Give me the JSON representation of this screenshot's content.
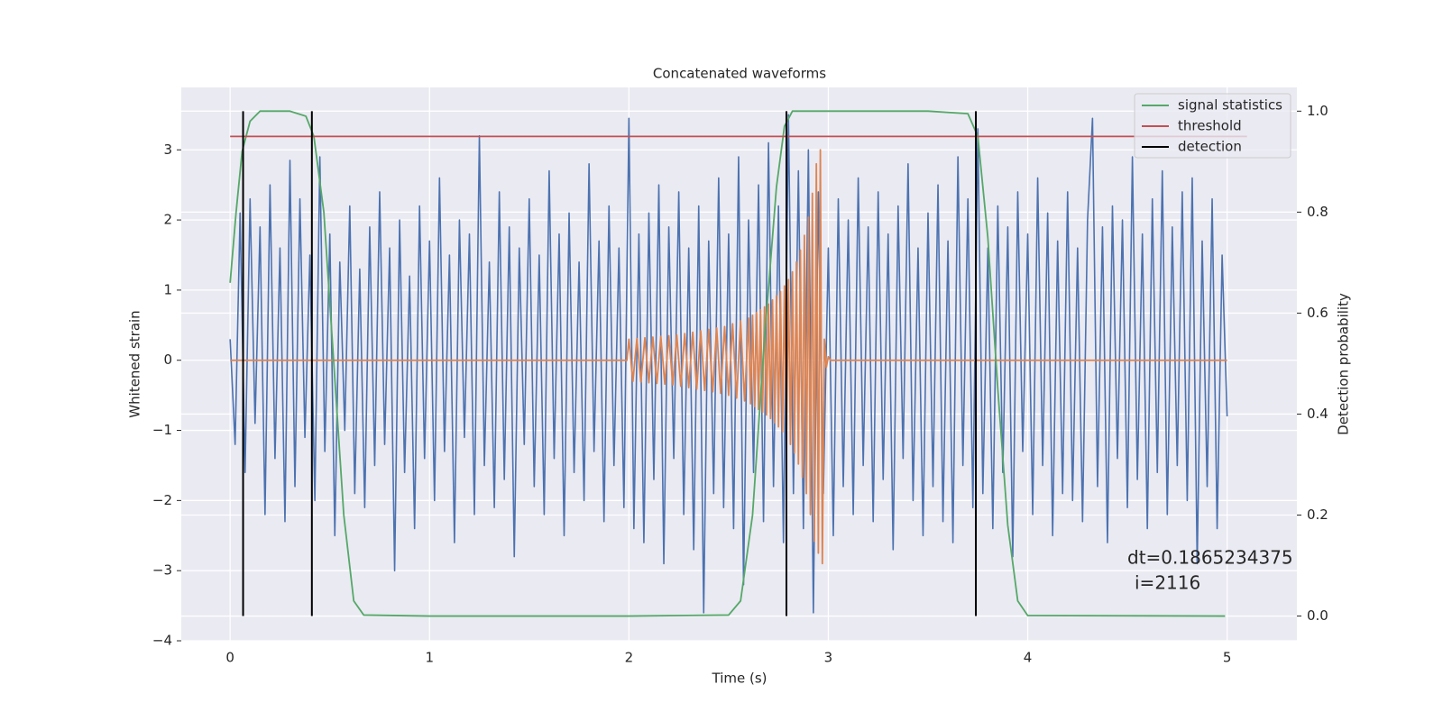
{
  "chart_data": {
    "type": "line",
    "title": "Concatenated waveforms",
    "xlabel": "Time (s)",
    "ylabel": "Whitened strain",
    "y2label": "Detection probability",
    "xlim": [
      -0.245,
      5.35
    ],
    "ylim": [
      -4,
      3.89
    ],
    "y2lim": [
      -0.049,
      1.047
    ],
    "xticks": [
      0,
      1,
      2,
      3,
      4,
      5
    ],
    "yticks": [
      {
        "value": -4,
        "label": "−4"
      },
      {
        "value": -3,
        "label": "−3"
      },
      {
        "value": -2,
        "label": "−2"
      },
      {
        "value": -1,
        "label": "−1"
      },
      0,
      1,
      2,
      3
    ],
    "y2ticks": [
      {
        "value": 0,
        "label": "0.0"
      },
      0.2,
      0.4,
      0.6,
      0.8,
      {
        "value": 1,
        "label": "1.0"
      }
    ],
    "grid": true,
    "legend": "upper right",
    "series": [
      {
        "color": "#4c72b0",
        "x": [
          0,
          0.025,
          0.05,
          0.075,
          0.1,
          0.125,
          0.15,
          0.175,
          0.2,
          0.225,
          0.25,
          0.275,
          0.3,
          0.325,
          0.35,
          0.375,
          0.4,
          0.425,
          0.45,
          0.475,
          0.5,
          0.525,
          0.55,
          0.575,
          0.6,
          0.625,
          0.65,
          0.675,
          0.7,
          0.725,
          0.75,
          0.775,
          0.8,
          0.825,
          0.85,
          0.875,
          0.9,
          0.925,
          0.95,
          0.975,
          1,
          1.025,
          1.05,
          1.075,
          1.1,
          1.125,
          1.15,
          1.175,
          1.2,
          1.225,
          1.25,
          1.275,
          1.3,
          1.325,
          1.35,
          1.375,
          1.4,
          1.425,
          1.45,
          1.475,
          1.5,
          1.525,
          1.55,
          1.575,
          1.6,
          1.625,
          1.65,
          1.675,
          1.7,
          1.725,
          1.75,
          1.775,
          1.8,
          1.825,
          1.85,
          1.875,
          1.9,
          1.925,
          1.95,
          1.975,
          2,
          2.025,
          2.05,
          2.075,
          2.1,
          2.125,
          2.15,
          2.175,
          2.2,
          2.225,
          2.25,
          2.275,
          2.3,
          2.325,
          2.35,
          2.375,
          2.4,
          2.425,
          2.45,
          2.475,
          2.5,
          2.525,
          2.55,
          2.575,
          2.6,
          2.625,
          2.65,
          2.675,
          2.7,
          2.725,
          2.75,
          2.775,
          2.8,
          2.825,
          2.85,
          2.875,
          2.9,
          2.925,
          2.95,
          2.975,
          3,
          3.025,
          3.05,
          3.075,
          3.1,
          3.125,
          3.15,
          3.175,
          3.2,
          3.225,
          3.25,
          3.275,
          3.3,
          3.325,
          3.35,
          3.375,
          3.4,
          3.425,
          3.45,
          3.475,
          3.5,
          3.525,
          3.55,
          3.575,
          3.6,
          3.625,
          3.65,
          3.675,
          3.7,
          3.725,
          3.75,
          3.775,
          3.8,
          3.825,
          3.85,
          3.875,
          3.9,
          3.925,
          3.95,
          3.975,
          4,
          4.025,
          4.05,
          4.075,
          4.1,
          4.125,
          4.15,
          4.175,
          4.2,
          4.225,
          4.25,
          4.275,
          4.3,
          4.325,
          4.35,
          4.375,
          4.4,
          4.425,
          4.45,
          4.475,
          4.5,
          4.525,
          4.55,
          4.575,
          4.6,
          4.625,
          4.65,
          4.675,
          4.7,
          4.725,
          4.75,
          4.775,
          4.8,
          4.825,
          4.85,
          4.875,
          4.9,
          4.925,
          4.95,
          4.975,
          5
        ],
        "values": [
          0.3,
          -1.2,
          2.1,
          -1.6,
          2.3,
          -0.9,
          1.9,
          -2.2,
          2.5,
          -1.4,
          1.6,
          -2.3,
          2.85,
          -1.8,
          2.3,
          -1.1,
          1.5,
          -2.0,
          2.9,
          -1.3,
          1.8,
          -2.5,
          1.4,
          -1.0,
          2.2,
          -1.9,
          1.3,
          -2.1,
          1.9,
          -1.5,
          2.4,
          -1.2,
          1.6,
          -3.0,
          2.0,
          -1.6,
          1.2,
          -2.4,
          2.2,
          -1.4,
          1.7,
          -2.0,
          2.6,
          -1.3,
          1.5,
          -2.6,
          2.0,
          -1.1,
          1.8,
          -2.2,
          3.2,
          -1.5,
          1.4,
          -2.1,
          2.4,
          -1.7,
          1.9,
          -2.8,
          1.6,
          -1.2,
          2.3,
          -1.8,
          1.5,
          -2.2,
          2.7,
          -1.4,
          1.8,
          -2.5,
          2.1,
          -1.6,
          1.4,
          -2.0,
          2.8,
          -1.3,
          1.7,
          -2.3,
          2.2,
          -1.5,
          1.6,
          -2.1,
          3.45,
          -2.4,
          1.8,
          -2.6,
          2.1,
          -1.7,
          2.5,
          -2.9,
          1.9,
          -1.4,
          2.4,
          -2.2,
          1.6,
          -2.7,
          2.2,
          -3.6,
          1.7,
          -1.9,
          2.6,
          -2.1,
          1.8,
          -2.4,
          2.9,
          -3.2,
          2.0,
          -1.6,
          2.5,
          -2.3,
          3.1,
          -1.8,
          2.2,
          -2.6,
          3.5,
          -1.9,
          2.7,
          -2.4,
          3.0,
          -3.6,
          2.4,
          -1.9,
          1.6,
          -2.5,
          2.3,
          -1.8,
          2.0,
          -2.2,
          2.6,
          -1.5,
          1.9,
          -2.3,
          2.4,
          -1.7,
          1.8,
          -2.7,
          2.2,
          -1.4,
          2.8,
          -2.0,
          1.6,
          -2.5,
          2.1,
          -1.8,
          2.5,
          -2.3,
          1.7,
          -2.6,
          2.9,
          -1.5,
          2.3,
          -2.1,
          3.3,
          -1.9,
          1.6,
          -2.4,
          2.2,
          -1.6,
          1.9,
          -2.8,
          2.4,
          -1.3,
          1.8,
          -2.2,
          2.6,
          -1.5,
          2.1,
          -2.5,
          1.7,
          -1.9,
          2.4,
          -2.0,
          1.6,
          -2.3,
          2.0,
          3.45,
          -1.8,
          1.9,
          -2.6,
          2.2,
          -1.4,
          2.0,
          -2.1,
          2.9,
          -1.7,
          1.8,
          -2.4,
          2.3,
          -1.6,
          2.7,
          -2.2,
          1.9,
          -1.5,
          2.4,
          -2.0,
          2.6,
          -2.9,
          1.7,
          -1.8,
          2.3,
          -2.4,
          1.5,
          -0.8
        ]
      },
      {
        "color": "#dd8452",
        "x": [
          0,
          1.99,
          2.0,
          2.02,
          2.04,
          2.06,
          2.08,
          2.1,
          2.12,
          2.14,
          2.16,
          2.18,
          2.2,
          2.22,
          2.24,
          2.26,
          2.28,
          2.3,
          2.32,
          2.34,
          2.36,
          2.38,
          2.4,
          2.42,
          2.44,
          2.46,
          2.48,
          2.5,
          2.52,
          2.54,
          2.56,
          2.58,
          2.6,
          2.61,
          2.62,
          2.63,
          2.64,
          2.65,
          2.66,
          2.67,
          2.68,
          2.69,
          2.7,
          2.71,
          2.72,
          2.73,
          2.74,
          2.75,
          2.76,
          2.77,
          2.78,
          2.79,
          2.8,
          2.81,
          2.82,
          2.83,
          2.84,
          2.85,
          2.86,
          2.87,
          2.88,
          2.89,
          2.9,
          2.91,
          2.92,
          2.93,
          2.94,
          2.95,
          2.96,
          2.97,
          2.98,
          2.99,
          3.0,
          3.01,
          5.0
        ],
        "values": [
          0,
          0,
          0.3,
          -0.3,
          0.31,
          -0.31,
          0.32,
          -0.32,
          0.33,
          -0.33,
          0.34,
          -0.34,
          0.35,
          -0.35,
          0.36,
          -0.37,
          0.38,
          -0.39,
          0.4,
          -0.41,
          0.42,
          -0.43,
          0.44,
          -0.45,
          0.46,
          -0.47,
          0.48,
          -0.5,
          0.52,
          -0.54,
          0.56,
          -0.58,
          0.6,
          -0.62,
          0.64,
          -0.66,
          0.68,
          -0.7,
          0.72,
          -0.74,
          0.76,
          -0.78,
          0.8,
          -0.83,
          0.86,
          -0.89,
          0.92,
          -0.95,
          0.98,
          -1.02,
          1.06,
          -1.1,
          1.15,
          -1.2,
          1.26,
          -1.32,
          1.4,
          -1.48,
          1.57,
          -1.67,
          1.78,
          -1.9,
          2.04,
          -2.2,
          2.38,
          -2.58,
          2.8,
          -2.75,
          3.0,
          -2.9,
          0.3,
          -0.1,
          0.05,
          0,
          0
        ]
      },
      {
        "name": "signal statistics",
        "color": "#55a868",
        "axis": "y2",
        "x": [
          0,
          0.03,
          0.06,
          0.1,
          0.15,
          0.3,
          0.38,
          0.42,
          0.47,
          0.52,
          0.57,
          0.62,
          0.67,
          1,
          2,
          2.5,
          2.56,
          2.62,
          2.68,
          2.74,
          2.78,
          2.82,
          3.5,
          3.7,
          3.75,
          3.8,
          3.85,
          3.9,
          3.95,
          4.0,
          4.99
        ],
        "values": [
          0.66,
          0.8,
          0.92,
          0.98,
          1.0,
          1.0,
          0.99,
          0.95,
          0.8,
          0.5,
          0.2,
          0.03,
          0.002,
          0,
          0,
          0.002,
          0.03,
          0.2,
          0.55,
          0.85,
          0.97,
          1.0,
          1.0,
          0.995,
          0.95,
          0.75,
          0.45,
          0.18,
          0.03,
          0.001,
          0
        ]
      },
      {
        "name": "threshold",
        "color": "#c44e52",
        "axis": "y2",
        "x": [
          0,
          5.1
        ],
        "values": [
          0.95,
          0.95
        ]
      }
    ],
    "detection": {
      "name": "detection",
      "color": "#000000",
      "x": [
        0.065,
        0.41,
        2.79,
        3.74
      ],
      "span": [
        0,
        1
      ]
    },
    "annotation": [
      "dt=0.1865234375",
      "i=2116"
    ]
  }
}
